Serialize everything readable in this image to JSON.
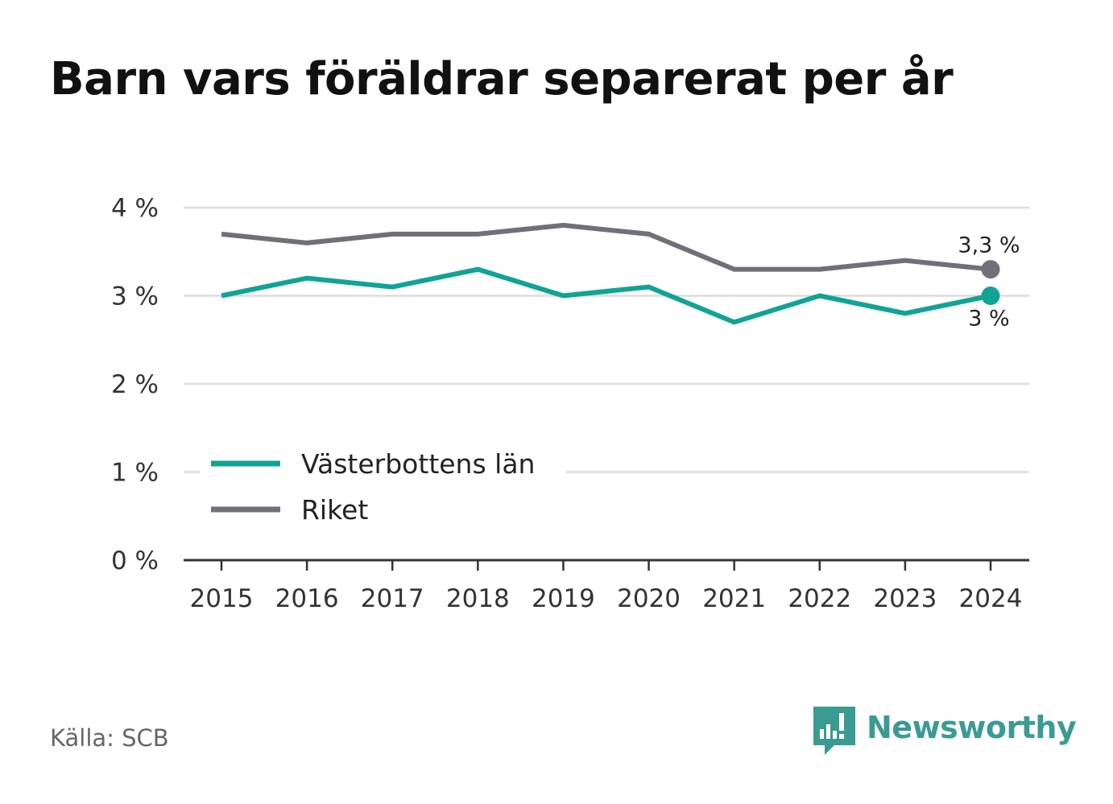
{
  "title": "Barn vars föräldrar separerat per år",
  "source": "Källa: SCB",
  "brand": {
    "name": "Newsworthy",
    "icon": "newsworthy-logo-icon",
    "color": "#3a9b93"
  },
  "chart_data": {
    "type": "line",
    "title": "Barn vars föräldrar separerat per år",
    "x": [
      "2015",
      "2016",
      "2017",
      "2018",
      "2019",
      "2020",
      "2021",
      "2022",
      "2023",
      "2024"
    ],
    "y_ticks": [
      0,
      1,
      2,
      3,
      4
    ],
    "y_tick_labels": [
      "0 %",
      "1 %",
      "2 %",
      "3 %",
      "4 %"
    ],
    "ylim": [
      0,
      4
    ],
    "y_unit": "%",
    "grid": true,
    "legend_position": "bottom-left",
    "series": [
      {
        "name": "Västerbottens län",
        "color": "#10a396",
        "values": [
          3.0,
          3.2,
          3.1,
          3.3,
          3.0,
          3.1,
          2.7,
          3.0,
          2.8,
          3.0
        ],
        "end_label": "3 %"
      },
      {
        "name": "Riket",
        "color": "#717079",
        "values": [
          3.7,
          3.6,
          3.7,
          3.7,
          3.8,
          3.7,
          3.3,
          3.3,
          3.4,
          3.3
        ],
        "end_label": "3,3 %"
      }
    ]
  }
}
